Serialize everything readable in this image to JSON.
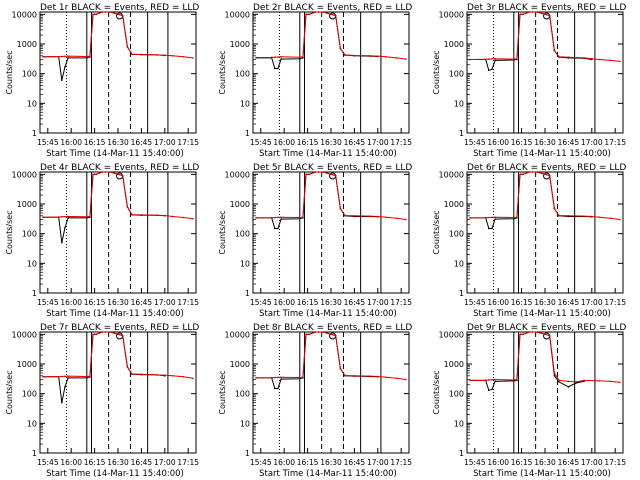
{
  "shared": {
    "ylabel": "Counts/sec",
    "xlabel": "Start Time (14-Mar-11 15:40:00)",
    "x_tick_labels": [
      "15:45",
      "16:00",
      "16:15",
      "16:30",
      "16:45",
      "17:00",
      "17:15"
    ],
    "y_tick_labels": [
      "1",
      "10",
      "100",
      "1000",
      "10000"
    ],
    "colors": {
      "events": "#000000",
      "lld": "#e00000",
      "axes": "#000000",
      "background": "#ffffff"
    }
  },
  "chart_data": [
    {
      "type": "line",
      "title": "Det 1r BLACK = Events, RED = LLD",
      "xlim": [
        "15:40",
        "17:20"
      ],
      "ylim": [
        1,
        12000
      ],
      "yscale": "log",
      "x": [
        "15:42",
        "15:52",
        "15:54",
        "15:56",
        "15:58",
        "16:10",
        "16:12",
        "16:14",
        "16:16",
        "16:20",
        "16:22",
        "16:25",
        "16:33",
        "16:36",
        "16:39",
        "16:45",
        "16:55",
        "17:00",
        "17:05",
        "17:12",
        "17:18"
      ],
      "series": [
        {
          "name": "Events",
          "values": [
            370,
            370,
            60,
            170,
            340,
            340,
            370,
            10000,
            10000,
            12000,
            12000,
            12000,
            9000,
            800,
            450,
            440,
            430,
            410,
            null,
            null,
            null
          ]
        },
        {
          "name": "LLD",
          "values": [
            370,
            375,
            380,
            385,
            390,
            380,
            390,
            10000,
            10000,
            12000,
            12000,
            12000,
            9000,
            800,
            450,
            440,
            430,
            420,
            400,
            370,
            340
          ]
        }
      ]
    },
    {
      "type": "line",
      "title": "Det 2r BLACK = Events, RED = LLD",
      "xlim": [
        "15:40",
        "17:20"
      ],
      "ylim": [
        1,
        12000
      ],
      "yscale": "log",
      "x": [
        "15:42",
        "15:52",
        "15:54",
        "15:56",
        "15:58",
        "16:10",
        "16:12",
        "16:14",
        "16:16",
        "16:20",
        "16:22",
        "16:25",
        "16:33",
        "16:36",
        "16:39",
        "16:45",
        "16:55",
        "17:00",
        "17:05",
        "17:12",
        "17:18"
      ],
      "series": [
        {
          "name": "Events",
          "values": [
            340,
            340,
            150,
            150,
            310,
            320,
            340,
            10000,
            10000,
            12000,
            12000,
            12000,
            9000,
            700,
            420,
            400,
            390,
            380,
            null,
            null,
            null
          ]
        },
        {
          "name": "LLD",
          "values": [
            350,
            355,
            360,
            365,
            370,
            360,
            370,
            10000,
            10000,
            12000,
            12000,
            12000,
            9000,
            700,
            430,
            410,
            400,
            390,
            370,
            340,
            310
          ]
        }
      ]
    },
    {
      "type": "line",
      "title": "Det 3r BLACK = Events, RED = LLD",
      "xlim": [
        "15:40",
        "17:20"
      ],
      "ylim": [
        1,
        12000
      ],
      "yscale": "log",
      "x": [
        "15:42",
        "15:52",
        "15:54",
        "15:56",
        "15:58",
        "16:10",
        "16:12",
        "16:14",
        "16:16",
        "16:20",
        "16:22",
        "16:25",
        "16:33",
        "16:36",
        "16:39",
        "16:45",
        "16:55",
        "17:00",
        "17:05",
        "17:12",
        "17:18"
      ],
      "series": [
        {
          "name": "Events",
          "values": [
            300,
            300,
            130,
            140,
            280,
            290,
            300,
            10000,
            10000,
            12000,
            12000,
            12000,
            9000,
            600,
            360,
            340,
            330,
            300,
            null,
            null,
            null
          ]
        },
        {
          "name": "LLD",
          "values": [
            300,
            305,
            310,
            315,
            320,
            310,
            320,
            10000,
            10000,
            12000,
            12000,
            12000,
            9000,
            600,
            370,
            360,
            340,
            320,
            300,
            280,
            260
          ]
        }
      ]
    },
    {
      "type": "line",
      "title": "Det 4r BLACK = Events, RED = LLD",
      "xlim": [
        "15:40",
        "17:20"
      ],
      "ylim": [
        1,
        12000
      ],
      "yscale": "log",
      "x": [
        "15:42",
        "15:52",
        "15:54",
        "15:56",
        "15:58",
        "16:10",
        "16:12",
        "16:14",
        "16:16",
        "16:20",
        "16:22",
        "16:25",
        "16:33",
        "16:36",
        "16:39",
        "16:45",
        "16:55",
        "17:00",
        "17:05",
        "17:12",
        "17:18"
      ],
      "series": [
        {
          "name": "Events",
          "values": [
            360,
            360,
            50,
            160,
            340,
            340,
            360,
            10000,
            10000,
            12000,
            12000,
            12000,
            9000,
            800,
            430,
            420,
            420,
            400,
            null,
            null,
            null
          ]
        },
        {
          "name": "LLD",
          "values": [
            360,
            365,
            370,
            375,
            380,
            370,
            380,
            10000,
            10000,
            12000,
            12000,
            12000,
            9000,
            800,
            440,
            430,
            420,
            410,
            380,
            350,
            320
          ]
        }
      ]
    },
    {
      "type": "line",
      "title": "Det 5r BLACK = Events, RED = LLD",
      "xlim": [
        "15:40",
        "17:20"
      ],
      "ylim": [
        1,
        12000
      ],
      "yscale": "log",
      "x": [
        "15:42",
        "15:52",
        "15:54",
        "15:56",
        "15:58",
        "16:10",
        "16:12",
        "16:14",
        "16:16",
        "16:20",
        "16:22",
        "16:25",
        "16:33",
        "16:36",
        "16:39",
        "16:45",
        "16:55",
        "17:00",
        "17:05",
        "17:12",
        "17:18"
      ],
      "series": [
        {
          "name": "Events",
          "values": [
            340,
            340,
            150,
            150,
            310,
            320,
            340,
            10000,
            10000,
            12000,
            12000,
            12000,
            9000,
            700,
            400,
            380,
            380,
            370,
            null,
            null,
            null
          ]
        },
        {
          "name": "LLD",
          "values": [
            340,
            345,
            350,
            355,
            360,
            350,
            360,
            10000,
            10000,
            12000,
            12000,
            12000,
            9000,
            700,
            410,
            400,
            390,
            380,
            360,
            330,
            300
          ]
        }
      ]
    },
    {
      "type": "line",
      "title": "Det 6r BLACK = Events, RED = LLD",
      "xlim": [
        "15:40",
        "17:20"
      ],
      "ylim": [
        1,
        12000
      ],
      "yscale": "log",
      "x": [
        "15:42",
        "15:52",
        "15:54",
        "15:56",
        "15:58",
        "16:10",
        "16:12",
        "16:14",
        "16:16",
        "16:20",
        "16:22",
        "16:25",
        "16:33",
        "16:36",
        "16:39",
        "16:45",
        "16:55",
        "17:00",
        "17:05",
        "17:12",
        "17:18"
      ],
      "series": [
        {
          "name": "Events",
          "values": [
            340,
            340,
            150,
            150,
            310,
            320,
            340,
            10000,
            10000,
            12000,
            12000,
            12000,
            9000,
            700,
            400,
            380,
            380,
            370,
            null,
            null,
            null
          ]
        },
        {
          "name": "LLD",
          "values": [
            340,
            345,
            350,
            355,
            360,
            350,
            360,
            10000,
            10000,
            12000,
            12000,
            12000,
            9000,
            700,
            410,
            400,
            390,
            380,
            360,
            330,
            300
          ]
        }
      ]
    },
    {
      "type": "line",
      "title": "Det 7r BLACK = Events, RED = LLD",
      "xlim": [
        "15:40",
        "17:20"
      ],
      "ylim": [
        1,
        12000
      ],
      "yscale": "log",
      "x": [
        "15:42",
        "15:52",
        "15:54",
        "15:56",
        "15:58",
        "16:10",
        "16:12",
        "16:14",
        "16:16",
        "16:20",
        "16:22",
        "16:25",
        "16:33",
        "16:36",
        "16:39",
        "16:45",
        "16:55",
        "17:00",
        "17:05",
        "17:12",
        "17:18"
      ],
      "series": [
        {
          "name": "Events",
          "values": [
            370,
            370,
            50,
            170,
            340,
            340,
            370,
            10000,
            10000,
            12000,
            12000,
            12000,
            9000,
            800,
            450,
            440,
            430,
            400,
            null,
            null,
            null
          ]
        },
        {
          "name": "LLD",
          "values": [
            370,
            375,
            380,
            385,
            390,
            380,
            390,
            10000,
            10000,
            12000,
            12000,
            12000,
            9000,
            800,
            460,
            450,
            430,
            420,
            400,
            370,
            330
          ]
        }
      ]
    },
    {
      "type": "line",
      "title": "Det 8r BLACK = Events, RED = LLD",
      "xlim": [
        "15:40",
        "17:20"
      ],
      "ylim": [
        1,
        12000
      ],
      "yscale": "log",
      "x": [
        "15:42",
        "15:52",
        "15:54",
        "15:56",
        "15:58",
        "16:10",
        "16:12",
        "16:14",
        "16:16",
        "16:20",
        "16:22",
        "16:25",
        "16:33",
        "16:36",
        "16:39",
        "16:45",
        "16:55",
        "17:00",
        "17:05",
        "17:12",
        "17:18"
      ],
      "series": [
        {
          "name": "Events",
          "values": [
            340,
            340,
            150,
            150,
            310,
            320,
            340,
            10000,
            10000,
            12000,
            12000,
            12000,
            9000,
            700,
            400,
            390,
            380,
            370,
            null,
            null,
            null
          ]
        },
        {
          "name": "LLD",
          "values": [
            340,
            345,
            350,
            355,
            360,
            350,
            360,
            10000,
            10000,
            12000,
            12000,
            12000,
            9000,
            700,
            410,
            400,
            390,
            380,
            360,
            330,
            300
          ]
        }
      ]
    },
    {
      "type": "line",
      "title": "Det 9r BLACK = Events, RED = LLD",
      "xlim": [
        "15:40",
        "17:20"
      ],
      "ylim": [
        1,
        12000
      ],
      "yscale": "log",
      "x": [
        "15:42",
        "15:52",
        "15:54",
        "15:56",
        "15:58",
        "16:10",
        "16:12",
        "16:14",
        "16:16",
        "16:20",
        "16:22",
        "16:25",
        "16:33",
        "16:36",
        "16:39",
        "16:45",
        "16:50",
        "16:55",
        "17:05",
        "17:12",
        "17:18"
      ],
      "series": [
        {
          "name": "Events",
          "values": [
            280,
            280,
            130,
            140,
            260,
            270,
            280,
            10000,
            10000,
            12000,
            12000,
            12000,
            9000,
            400,
            250,
            170,
            230,
            260,
            null,
            null,
            null
          ]
        },
        {
          "name": "LLD",
          "values": [
            280,
            285,
            290,
            295,
            300,
            290,
            300,
            10000,
            10000,
            12000,
            12000,
            12000,
            9000,
            500,
            280,
            260,
            250,
            280,
            270,
            260,
            240
          ]
        }
      ]
    }
  ]
}
